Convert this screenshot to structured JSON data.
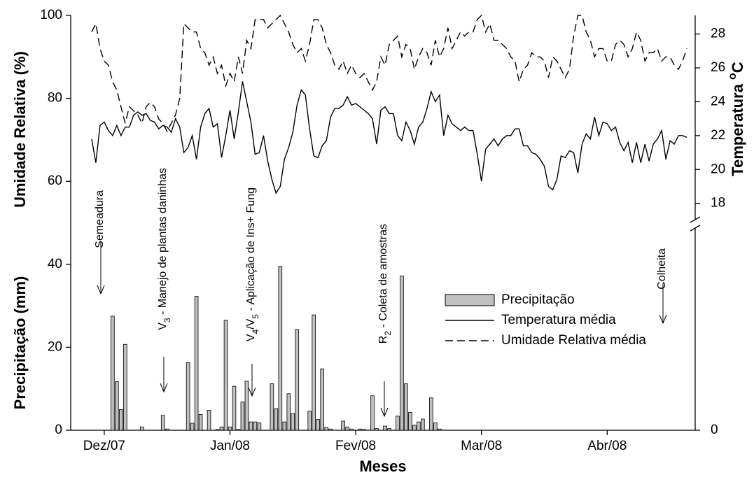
{
  "chart_data": {
    "type": "combo",
    "x_title": "Meses",
    "y_titles": [
      "Umidade Relativa (%)",
      "Precipitação (mm)"
    ],
    "y2_title_parts": [
      "Temperatura ",
      "o",
      "C"
    ],
    "y2_title_superscripts": [
      1
    ],
    "xlim": [
      0,
      149
    ],
    "xticks": [
      {
        "value": 8,
        "label": "Dez/07"
      },
      {
        "value": 38,
        "label": "Jan/08"
      },
      {
        "value": 68,
        "label": "Fev/08"
      },
      {
        "value": 98,
        "label": "Mar/08"
      },
      {
        "value": 128,
        "label": "Abr/08"
      }
    ],
    "ylim": [
      0,
      100
    ],
    "yticks": [
      0,
      20,
      40,
      60,
      80,
      100
    ],
    "y2lim": [
      4.6,
      29.1
    ],
    "y2ticks": [
      18,
      20,
      22,
      24,
      26,
      28
    ],
    "y2_break_tick": 0,
    "legend": "right",
    "x": [
      5,
      6,
      7,
      8,
      9,
      10,
      11,
      12,
      13,
      14,
      15,
      16,
      17,
      18,
      19,
      20,
      21,
      22,
      23,
      24,
      25,
      26,
      27,
      28,
      29,
      30,
      31,
      32,
      33,
      34,
      35,
      36,
      37,
      38,
      39,
      40,
      41,
      42,
      43,
      44,
      45,
      46,
      47,
      48,
      49,
      50,
      51,
      52,
      53,
      54,
      55,
      56,
      57,
      58,
      59,
      60,
      61,
      62,
      63,
      64,
      65,
      66,
      67,
      68,
      69,
      70,
      71,
      72,
      73,
      74,
      75,
      76,
      77,
      78,
      79,
      80,
      81,
      82,
      83,
      84,
      85,
      86,
      87,
      88,
      89,
      90,
      91,
      92,
      93,
      94,
      95,
      96,
      97,
      98,
      99,
      100,
      101,
      102,
      103,
      104,
      105,
      106,
      107,
      108,
      109,
      110,
      111,
      112,
      113,
      114,
      115,
      116,
      117,
      118,
      119,
      120,
      121,
      122,
      123,
      124,
      125,
      126,
      127,
      128,
      129,
      130,
      131,
      132,
      133,
      134,
      135,
      136,
      137,
      138,
      139,
      140,
      141,
      142,
      143,
      144,
      145,
      146,
      147
    ],
    "series": [
      {
        "name": "Precipitação",
        "kind": "bar",
        "color": "#c0c0c0",
        "axis": "y",
        "x": [
          10,
          11,
          12,
          13,
          17,
          22,
          23,
          28,
          29,
          30,
          31,
          33,
          35,
          36,
          37,
          38,
          39,
          40,
          41,
          42,
          43,
          44,
          45,
          48,
          49,
          50,
          51,
          52,
          53,
          54,
          57,
          58,
          59,
          60,
          61,
          62,
          65,
          66,
          67,
          69,
          70,
          72,
          73,
          75,
          76,
          78,
          79,
          80,
          81,
          82,
          83,
          84,
          86,
          87,
          88
        ],
        "values": [
          27.5,
          11.7,
          5,
          20.7,
          0.8,
          3.6,
          0.3,
          16.3,
          1.7,
          32.3,
          3.8,
          4.8,
          0.2,
          0.8,
          26.5,
          0.8,
          10.6,
          0.2,
          6.8,
          11.8,
          2,
          2,
          1.8,
          11.2,
          5.2,
          39.5,
          2,
          8.8,
          4,
          24.3,
          4.6,
          27.8,
          2.6,
          14.8,
          0.7,
          0.3,
          2.2,
          0.8,
          0.3,
          0.3,
          0.2,
          8.3,
          0.4,
          1,
          0.4,
          3.4,
          37.2,
          11.2,
          4.3,
          1.2,
          2,
          2.7,
          7.8,
          1.8,
          0.3
        ]
      },
      {
        "name": "Temperatura média",
        "kind": "line",
        "line_style": "solid",
        "color": "#000000",
        "axis": "y2",
        "values": [
          21.8,
          20.4,
          22.6,
          22.8,
          22.3,
          22.0,
          22.6,
          22.0,
          22.5,
          22.5,
          23.2,
          23.4,
          23.2,
          23.3,
          22.9,
          22.8,
          22.4,
          22.6,
          22.5,
          22.2,
          23.0,
          22.5,
          21.0,
          21.3,
          22.0,
          20.6,
          22.5,
          23.3,
          23.6,
          22.5,
          22.7,
          20.7,
          22.0,
          23.5,
          21.8,
          23.4,
          25.2,
          24.0,
          22.8,
          20.9,
          21.0,
          22.0,
          20.5,
          19.4,
          18.6,
          19.0,
          20.6,
          21.3,
          22.2,
          23.8,
          24.7,
          24.4,
          22.4,
          20.8,
          20.7,
          21.4,
          21.7,
          23.1,
          23.6,
          23.6,
          23.8,
          24.3,
          23.8,
          23.9,
          23.7,
          23.5,
          23.3,
          23.0,
          21.5,
          23.5,
          23.7,
          23.3,
          23.3,
          22.0,
          21.7,
          22.8,
          22.3,
          21.5,
          22.5,
          22.8,
          23.6,
          24.6,
          24.0,
          24.4,
          22.0,
          23.2,
          22.7,
          22.5,
          22.3,
          22.5,
          22.3,
          22.3,
          20.9,
          19.3,
          21.2,
          21.5,
          21.8,
          21.4,
          21.8,
          22.0,
          22.0,
          22.4,
          22.4,
          21.4,
          21.4,
          21.0,
          20.9,
          20.6,
          20.2,
          19.0,
          18.8,
          19.4,
          20.8,
          20.7,
          21.1,
          21.0,
          19.8,
          21.5,
          22.1,
          21.8,
          23.1,
          22.0,
          22.8,
          22.7,
          22.3,
          22.5,
          21.6,
          21.1,
          21.6,
          20.4,
          21.6,
          20.4,
          21.5,
          20.5,
          21.5,
          21.8,
          22.3,
          20.6,
          21.7,
          21.5,
          22.0,
          22.0,
          21.9
        ]
      },
      {
        "name": "Umidade Relativa média",
        "kind": "line",
        "line_style": "dashed",
        "color": "#000000",
        "axis": "y",
        "values": [
          96,
          98,
          92,
          89,
          88,
          84,
          82,
          78,
          74,
          78,
          77,
          76,
          74,
          78,
          79,
          78,
          75,
          74,
          72,
          74,
          76,
          80,
          98,
          97,
          96,
          96,
          92,
          91,
          88,
          90,
          86,
          88,
          83,
          86,
          84,
          90,
          86,
          94,
          92,
          99,
          99,
          99,
          97,
          98,
          99,
          100,
          98,
          96,
          93,
          91,
          92,
          89,
          93,
          99,
          99,
          97,
          93,
          91,
          88,
          87,
          89,
          86,
          88,
          86,
          85,
          86,
          84,
          82,
          84,
          90,
          88,
          93,
          94,
          95,
          90,
          93,
          92,
          87,
          90,
          92,
          91,
          88,
          94,
          90,
          92,
          97,
          92,
          94,
          96,
          95,
          96,
          96,
          99,
          100,
          96,
          98,
          94,
          94,
          93,
          92,
          90,
          89,
          84,
          87,
          88,
          91,
          90,
          90,
          89,
          85,
          90,
          89,
          87,
          85,
          87,
          95,
          100,
          100,
          96,
          94,
          90,
          92,
          92,
          89,
          89,
          93,
          94,
          93,
          90,
          92,
          96,
          94,
          89,
          91,
          91,
          92,
          89,
          90,
          90,
          88,
          87,
          89,
          92
        ]
      }
    ],
    "annotations": [
      {
        "parts": [
          "Semeadura"
        ],
        "subscripts": []
      },
      {
        "parts": [
          "V",
          "3",
          " - Manejo de plantas daninhas"
        ],
        "subscripts": [
          1
        ]
      },
      {
        "parts": [
          "V",
          "4",
          "/V",
          "5",
          " - Aplicação de Ins+ Fung"
        ],
        "subscripts": [
          1,
          3
        ]
      },
      {
        "parts": [
          "R",
          "2",
          " - Coleta de amostras"
        ],
        "subscripts": [
          1
        ]
      },
      {
        "parts": [
          "Colheita"
        ],
        "subscripts": []
      }
    ]
  }
}
